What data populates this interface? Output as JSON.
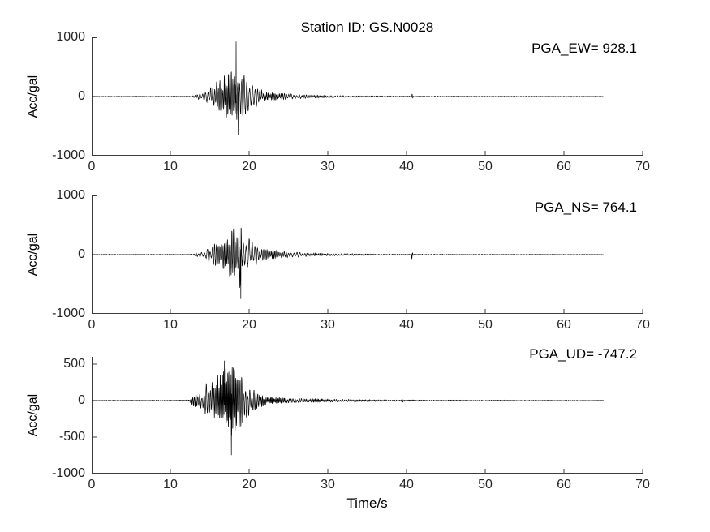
{
  "figure": {
    "title": "Station ID: GS.N0028",
    "xlabel": "Time/s",
    "background": "#ffffff",
    "axis_color": "#3c3c3c",
    "trace_color": "#000000",
    "grid": false,
    "legend": "none"
  },
  "chart_data": [
    {
      "type": "line",
      "channel": "EW",
      "annotation": "PGA_EW= 928.1",
      "pga": 928.1,
      "ylabel": "Acc/gal",
      "xlabel": "",
      "xlim": [
        0,
        70
      ],
      "ylim": [
        -1000,
        1000
      ],
      "xticks": [
        0,
        10,
        20,
        30,
        40,
        50,
        60,
        70
      ],
      "yticks": [
        -1000,
        0,
        1000
      ],
      "signal_end_s": 65,
      "carrier_hz": 4.2,
      "seed": 11,
      "peaks": [
        {
          "t": 18.35,
          "v": 928.1
        },
        {
          "t": 18.62,
          "v": -650
        }
      ],
      "noise_spike": {
        "t": 40.7,
        "a": 40
      },
      "envelope": [
        [
          0,
          5
        ],
        [
          10,
          6
        ],
        [
          12.6,
          7
        ],
        [
          13,
          22
        ],
        [
          13.5,
          45
        ],
        [
          14,
          75
        ],
        [
          14.5,
          115
        ],
        [
          15,
          155
        ],
        [
          15.5,
          205
        ],
        [
          16,
          265
        ],
        [
          16.5,
          325
        ],
        [
          17,
          365
        ],
        [
          17.5,
          425
        ],
        [
          18,
          510
        ],
        [
          18.4,
          620
        ],
        [
          18.7,
          520
        ],
        [
          19,
          410
        ],
        [
          19.5,
          330
        ],
        [
          20,
          255
        ],
        [
          20.5,
          195
        ],
        [
          21,
          150
        ],
        [
          21.5,
          118
        ],
        [
          22,
          95
        ],
        [
          23,
          68
        ],
        [
          24,
          54
        ],
        [
          25,
          45
        ],
        [
          26,
          38
        ],
        [
          28,
          27
        ],
        [
          30,
          19
        ],
        [
          32,
          15
        ],
        [
          34,
          12
        ],
        [
          36,
          10
        ],
        [
          38,
          9
        ],
        [
          40,
          8
        ],
        [
          43,
          7
        ],
        [
          46,
          7
        ],
        [
          50,
          6
        ],
        [
          55,
          5
        ],
        [
          60,
          5
        ],
        [
          65,
          5
        ]
      ]
    },
    {
      "type": "line",
      "channel": "NS",
      "annotation": "PGA_NS= 764.1",
      "pga": 764.1,
      "ylabel": "Acc/gal",
      "xlabel": "",
      "xlim": [
        0,
        70
      ],
      "ylim": [
        -1000,
        1000
      ],
      "xticks": [
        0,
        10,
        20,
        30,
        40,
        50,
        60,
        70
      ],
      "yticks": [
        -1000,
        0,
        1000
      ],
      "signal_end_s": 65,
      "carrier_hz": 4.0,
      "seed": 22,
      "peaks": [
        {
          "t": 18.72,
          "v": 764.1
        },
        {
          "t": 18.95,
          "v": -748
        }
      ],
      "noise_spike": {
        "t": 40.7,
        "a": 70
      },
      "envelope": [
        [
          0,
          5
        ],
        [
          10,
          6
        ],
        [
          12.7,
          7
        ],
        [
          13,
          18
        ],
        [
          13.5,
          38
        ],
        [
          14,
          60
        ],
        [
          14.5,
          92
        ],
        [
          15,
          132
        ],
        [
          15.5,
          182
        ],
        [
          16,
          242
        ],
        [
          16.5,
          300
        ],
        [
          17,
          340
        ],
        [
          17.5,
          385
        ],
        [
          18,
          455
        ],
        [
          18.5,
          560
        ],
        [
          18.8,
          600
        ],
        [
          19,
          495
        ],
        [
          19.5,
          375
        ],
        [
          20,
          278
        ],
        [
          20.5,
          208
        ],
        [
          21,
          158
        ],
        [
          21.5,
          124
        ],
        [
          22,
          100
        ],
        [
          23,
          74
        ],
        [
          24,
          58
        ],
        [
          25,
          48
        ],
        [
          26,
          40
        ],
        [
          28,
          29
        ],
        [
          30,
          21
        ],
        [
          32,
          17
        ],
        [
          34,
          14
        ],
        [
          36,
          12
        ],
        [
          38,
          10
        ],
        [
          40,
          9
        ],
        [
          43,
          8
        ],
        [
          46,
          7
        ],
        [
          50,
          7
        ],
        [
          55,
          6
        ],
        [
          60,
          5
        ],
        [
          65,
          5
        ]
      ]
    },
    {
      "type": "line",
      "channel": "UD",
      "annotation": "PGA_UD= -747.2",
      "pga": -747.2,
      "ylabel": "Acc/gal",
      "xlabel": "Time/s",
      "xlim": [
        0,
        70
      ],
      "ylim": [
        -1000,
        600
      ],
      "xticks": [
        0,
        10,
        20,
        30,
        40,
        50,
        60,
        70
      ],
      "yticks": [
        -1000,
        -500,
        0,
        500
      ],
      "signal_end_s": 65,
      "carrier_hz": 5.5,
      "seed": 33,
      "peaks": [
        {
          "t": 17.75,
          "v": -747.2
        },
        {
          "t": 16.85,
          "v": 548
        }
      ],
      "noise_spike": {
        "t": 39.5,
        "a": 25
      },
      "envelope": [
        [
          0,
          5
        ],
        [
          10,
          6
        ],
        [
          12.4,
          8
        ],
        [
          12.7,
          55
        ],
        [
          13,
          90
        ],
        [
          13.4,
          112
        ],
        [
          13.8,
          100
        ],
        [
          14.2,
          150
        ],
        [
          14.5,
          265
        ],
        [
          14.9,
          205
        ],
        [
          15.3,
          255
        ],
        [
          15.7,
          305
        ],
        [
          16.1,
          340
        ],
        [
          16.5,
          385
        ],
        [
          16.9,
          430
        ],
        [
          17.3,
          460
        ],
        [
          17.7,
          505
        ],
        [
          18.1,
          480
        ],
        [
          18.5,
          425
        ],
        [
          18.9,
          378
        ],
        [
          19.3,
          305
        ],
        [
          19.7,
          252
        ],
        [
          20.1,
          200
        ],
        [
          20.6,
          150
        ],
        [
          21.1,
          112
        ],
        [
          21.6,
          85
        ],
        [
          22.1,
          66
        ],
        [
          23,
          50
        ],
        [
          24,
          41
        ],
        [
          25,
          35
        ],
        [
          26,
          30
        ],
        [
          28,
          24
        ],
        [
          30,
          20
        ],
        [
          32,
          17
        ],
        [
          34,
          14
        ],
        [
          36,
          12
        ],
        [
          38,
          11
        ],
        [
          40,
          9
        ],
        [
          43,
          8
        ],
        [
          46,
          7
        ],
        [
          50,
          7
        ],
        [
          55,
          6
        ],
        [
          60,
          5
        ],
        [
          65,
          5
        ]
      ]
    }
  ]
}
